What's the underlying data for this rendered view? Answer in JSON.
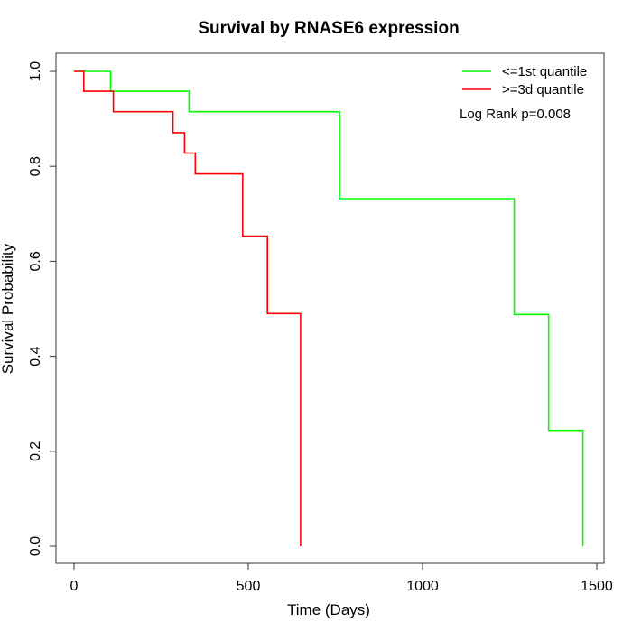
{
  "chart_data": {
    "type": "line",
    "title": "Survival by RNASE6 expression",
    "xlabel": "Time (Days)",
    "ylabel": "Survival Probability",
    "xlim": [
      0,
      1500
    ],
    "ylim": [
      0,
      1
    ],
    "xticks": [
      0,
      500,
      1000,
      1500
    ],
    "yticks": [
      0.0,
      0.2,
      0.4,
      0.6,
      0.8,
      1.0
    ],
    "xtick_labels": [
      "0",
      "500",
      "1000",
      "1500"
    ],
    "ytick_labels": [
      "0.0",
      "0.2",
      "0.4",
      "0.6",
      "0.8",
      "1.0"
    ],
    "grid": false,
    "legend_position": "top-right",
    "annotation": "Log Rank p=0.008",
    "series": [
      {
        "name": "<=1st quantile",
        "color": "#00ff00",
        "step_points": [
          [
            0,
            1.0
          ],
          [
            105,
            1.0
          ],
          [
            105,
            0.958
          ],
          [
            330,
            0.958
          ],
          [
            330,
            0.915
          ],
          [
            762,
            0.915
          ],
          [
            762,
            0.732
          ],
          [
            1263,
            0.732
          ],
          [
            1263,
            0.488
          ],
          [
            1362,
            0.488
          ],
          [
            1362,
            0.244
          ],
          [
            1460,
            0.244
          ],
          [
            1460,
            0.0
          ]
        ]
      },
      {
        "name": ">=3d quantile",
        "color": "#ff0000",
        "step_points": [
          [
            0,
            1.0
          ],
          [
            28,
            1.0
          ],
          [
            28,
            0.958
          ],
          [
            113,
            0.958
          ],
          [
            113,
            0.915
          ],
          [
            284,
            0.915
          ],
          [
            284,
            0.871
          ],
          [
            317,
            0.871
          ],
          [
            317,
            0.828
          ],
          [
            348,
            0.828
          ],
          [
            348,
            0.784
          ],
          [
            484,
            0.784
          ],
          [
            484,
            0.653
          ],
          [
            555,
            0.653
          ],
          [
            555,
            0.49
          ],
          [
            650,
            0.49
          ],
          [
            650,
            0.0
          ]
        ]
      }
    ]
  }
}
